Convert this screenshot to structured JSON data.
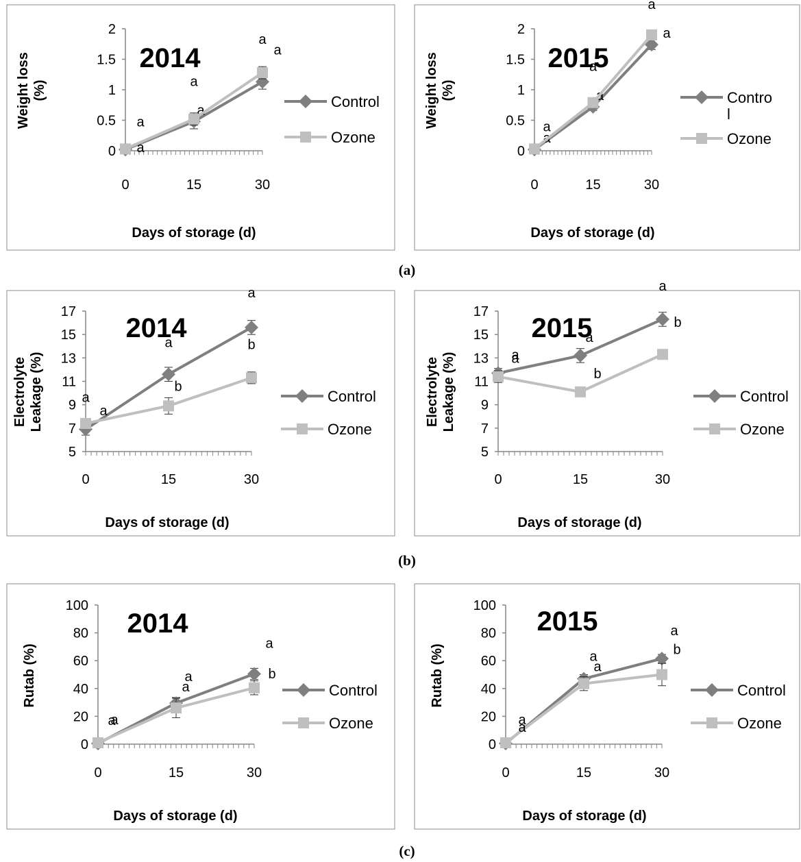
{
  "panel_labels": [
    "(a)",
    "(b)",
    "(c)"
  ],
  "chart_data": [
    {
      "type": "line",
      "title": "2014",
      "xlabel": "Days of storage (d)",
      "ylabel": "Weight loss (%)",
      "ylabel_lines": [
        "Weight loss",
        "(%)"
      ],
      "x": [
        0,
        15,
        30
      ],
      "xticks": [
        "0",
        "15",
        "30"
      ],
      "ylim": [
        0,
        2
      ],
      "yticks": [
        "0",
        "0.5",
        "1",
        "1.5",
        "2"
      ],
      "legend": "right",
      "series": [
        {
          "name": "Control",
          "name_lines": [
            "Control"
          ],
          "color": "#7f7f7f",
          "marker": "diamond",
          "values": [
            0.02,
            0.48,
            1.13
          ],
          "errors": [
            0.01,
            0.12,
            0.12
          ],
          "labels": [
            "a",
            "a",
            "a"
          ]
        },
        {
          "name": "Ozone",
          "name_lines": [
            "Ozone"
          ],
          "color": "#bfbfbf",
          "marker": "square",
          "values": [
            0.03,
            0.52,
            1.28
          ],
          "errors": [
            0.01,
            0.1,
            0.1
          ],
          "labels": [
            "a",
            "a",
            "a"
          ]
        }
      ]
    },
    {
      "type": "line",
      "title": "2015",
      "xlabel": "Days of storage (d)",
      "ylabel": "Weight loss (%)",
      "ylabel_lines": [
        "Weight loss",
        "(%)"
      ],
      "x": [
        0,
        15,
        30
      ],
      "xticks": [
        "0",
        "15",
        "30"
      ],
      "ylim": [
        0,
        2
      ],
      "yticks": [
        "0",
        "0.5",
        "1",
        "1.5",
        "2"
      ],
      "legend": "right",
      "series": [
        {
          "name": "Control",
          "name_lines": [
            "Contro",
            "l"
          ],
          "color": "#7f7f7f",
          "marker": "diamond",
          "values": [
            0.02,
            0.72,
            1.74
          ],
          "errors": [
            0.01,
            0.06,
            0.08
          ],
          "labels": [
            "a",
            "a",
            "a"
          ]
        },
        {
          "name": "Ozone",
          "name_lines": [
            "Ozone"
          ],
          "color": "#bfbfbf",
          "marker": "square",
          "values": [
            0.03,
            0.79,
            1.9
          ],
          "errors": [
            0.01,
            0.05,
            0.08
          ],
          "labels": [
            "a",
            "a",
            "a"
          ]
        }
      ]
    },
    {
      "type": "line",
      "title": "2014",
      "xlabel": "Days of storage (d)",
      "ylabel": "Electrolyte Leakage (%)",
      "ylabel_lines": [
        "Electrolyte",
        "Leakage (%)"
      ],
      "x": [
        0,
        15,
        30
      ],
      "xticks": [
        "0",
        "15",
        "30"
      ],
      "ylim": [
        5,
        17
      ],
      "yticks": [
        "5",
        "7",
        "9",
        "11",
        "13",
        "15",
        "17"
      ],
      "legend": "right",
      "series": [
        {
          "name": "Control",
          "name_lines": [
            "Control"
          ],
          "color": "#7f7f7f",
          "marker": "diamond",
          "values": [
            6.9,
            11.6,
            15.6
          ],
          "errors": [
            0.5,
            0.6,
            0.6
          ],
          "labels": [
            "a",
            "a",
            "a"
          ]
        },
        {
          "name": "Ozone",
          "name_lines": [
            "Ozone"
          ],
          "color": "#bfbfbf",
          "marker": "square",
          "values": [
            7.4,
            8.9,
            11.3
          ],
          "errors": [
            0.3,
            0.7,
            0.5
          ],
          "labels": [
            "a",
            "b",
            "b"
          ]
        }
      ]
    },
    {
      "type": "line",
      "title": "2015",
      "xlabel": "Days of storage (d)",
      "ylabel": "Electrolyte Leakage (%)",
      "ylabel_lines": [
        "Electrolyte",
        "Leakage (%)"
      ],
      "x": [
        0,
        15,
        30
      ],
      "xticks": [
        "0",
        "15",
        "30"
      ],
      "ylim": [
        5,
        17
      ],
      "yticks": [
        "5",
        "7",
        "9",
        "11",
        "13",
        "15",
        "17"
      ],
      "legend": "right",
      "series": [
        {
          "name": "Control",
          "name_lines": [
            "Control"
          ],
          "color": "#7f7f7f",
          "marker": "diamond",
          "values": [
            11.7,
            13.2,
            16.3
          ],
          "errors": [
            0.4,
            0.6,
            0.6
          ],
          "labels": [
            "a",
            "a",
            "a"
          ]
        },
        {
          "name": "Ozone",
          "name_lines": [
            "Ozone"
          ],
          "color": "#bfbfbf",
          "marker": "square",
          "values": [
            11.4,
            10.1,
            13.3
          ],
          "errors": [
            0.5,
            0.3,
            0.4
          ],
          "labels": [
            "a",
            "b",
            "b"
          ]
        }
      ]
    },
    {
      "type": "line",
      "title": "2014",
      "xlabel": "Days of storage (d)",
      "ylabel": "Rutab (%)",
      "ylabel_lines": [
        "Rutab (%)"
      ],
      "x": [
        0,
        15,
        30
      ],
      "xticks": [
        "0",
        "15",
        "30"
      ],
      "ylim": [
        0,
        100
      ],
      "yticks": [
        "0",
        "20",
        "40",
        "60",
        "80",
        "100"
      ],
      "legend": "right",
      "series": [
        {
          "name": "Control",
          "name_lines": [
            "Control"
          ],
          "color": "#7f7f7f",
          "marker": "diamond",
          "values": [
            0.5,
            29.5,
            50.5
          ],
          "errors": [
            0.5,
            4,
            4
          ],
          "labels": [
            "a",
            "a",
            "a"
          ]
        },
        {
          "name": "Ozone",
          "name_lines": [
            "Ozone"
          ],
          "color": "#bfbfbf",
          "marker": "square",
          "values": [
            1,
            26,
            40.5
          ],
          "errors": [
            0.5,
            7,
            5
          ],
          "labels": [
            "a",
            "a",
            "b"
          ]
        }
      ]
    },
    {
      "type": "line",
      "title": "2015",
      "xlabel": "Days of storage (d)",
      "ylabel": "Rutab (%)",
      "ylabel_lines": [
        "Rutab (%)"
      ],
      "x": [
        0,
        15,
        30
      ],
      "xticks": [
        "0",
        "15",
        "30"
      ],
      "ylim": [
        0,
        100
      ],
      "yticks": [
        "0",
        "20",
        "40",
        "60",
        "80",
        "100"
      ],
      "legend": "right",
      "series": [
        {
          "name": "Control",
          "name_lines": [
            "Control"
          ],
          "color": "#7f7f7f",
          "marker": "diamond",
          "values": [
            0.5,
            47,
            61.5
          ],
          "errors": [
            0.5,
            3,
            3
          ],
          "labels": [
            "a",
            "a",
            "a"
          ]
        },
        {
          "name": "Ozone",
          "name_lines": [
            "Ozone"
          ],
          "color": "#bfbfbf",
          "marker": "square",
          "values": [
            1,
            43.5,
            50
          ],
          "errors": [
            0.5,
            5,
            8
          ],
          "labels": [
            "a",
            "a",
            "b"
          ]
        }
      ]
    }
  ]
}
